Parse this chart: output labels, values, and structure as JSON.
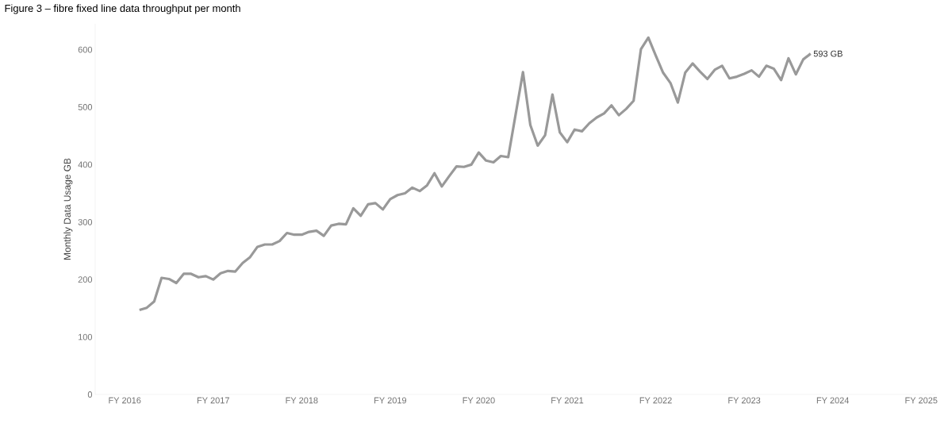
{
  "chart_data": {
    "type": "line",
    "title": "Figure 3 – fibre fixed line data throughput per month",
    "ylabel": "Monthly Data Usage GB",
    "x": [
      "2016-03",
      "2016-04",
      "2016-05",
      "2016-06",
      "2016-07",
      "2016-08",
      "2016-09",
      "2016-10",
      "2016-11",
      "2016-12",
      "2017-01",
      "2017-02",
      "2017-03",
      "2017-04",
      "2017-05",
      "2017-06",
      "2017-07",
      "2017-08",
      "2017-09",
      "2017-10",
      "2017-11",
      "2017-12",
      "2018-01",
      "2018-02",
      "2018-03",
      "2018-04",
      "2018-05",
      "2018-06",
      "2018-07",
      "2018-08",
      "2018-09",
      "2018-10",
      "2018-11",
      "2018-12",
      "2019-01",
      "2019-02",
      "2019-03",
      "2019-04",
      "2019-05",
      "2019-06",
      "2019-07",
      "2019-08",
      "2019-09",
      "2019-10",
      "2019-11",
      "2019-12",
      "2020-01",
      "2020-02",
      "2020-03",
      "2020-04",
      "2020-05",
      "2020-06",
      "2020-07",
      "2020-08",
      "2020-09",
      "2020-10",
      "2020-11",
      "2020-12",
      "2021-01",
      "2021-02",
      "2021-03",
      "2021-04",
      "2021-05",
      "2021-06",
      "2021-07",
      "2021-08",
      "2021-09",
      "2021-10",
      "2021-11",
      "2021-12",
      "2022-01",
      "2022-02",
      "2022-03",
      "2022-04",
      "2022-05",
      "2022-06",
      "2022-07",
      "2022-08",
      "2022-09",
      "2022-10",
      "2022-11",
      "2022-12",
      "2023-01",
      "2023-02",
      "2023-03",
      "2023-04",
      "2023-05",
      "2023-06",
      "2023-07",
      "2023-08",
      "2023-09",
      "2023-10"
    ],
    "series": [
      {
        "color": "#999999",
        "values": [
          147,
          151,
          162,
          203,
          201,
          194,
          210,
          210,
          204,
          206,
          200,
          211,
          215,
          214,
          229,
          239,
          257,
          261,
          261,
          267,
          281,
          278,
          278,
          283,
          285,
          276,
          294,
          297,
          296,
          324,
          311,
          331,
          333,
          322,
          340,
          347,
          350,
          360,
          354,
          364,
          385,
          362,
          380,
          397,
          396,
          400,
          421,
          407,
          404,
          415,
          413,
          487,
          561,
          469,
          433,
          451,
          522,
          456,
          439,
          461,
          458,
          472,
          482,
          489,
          503,
          486,
          497,
          511,
          601,
          621,
          590,
          560,
          542,
          508,
          560,
          576,
          562,
          549,
          565,
          572,
          550,
          553,
          558,
          564,
          553,
          572,
          567,
          547,
          585,
          557,
          583,
          593
        ]
      }
    ],
    "xlim": [
      "2015-09",
      "2025-03"
    ],
    "ylim": [
      0,
      645
    ],
    "xticks": [
      {
        "value": "2016",
        "label": "FY 2016"
      },
      {
        "value": "2017",
        "label": "FY 2017"
      },
      {
        "value": "2018",
        "label": "FY 2018"
      },
      {
        "value": "2019",
        "label": "FY 2019"
      },
      {
        "value": "2020",
        "label": "FY 2020"
      },
      {
        "value": "2021",
        "label": "FY 2021"
      },
      {
        "value": "2022",
        "label": "FY 2022"
      },
      {
        "value": "2023",
        "label": "FY 2023"
      },
      {
        "value": "2024",
        "label": "FY 2024"
      },
      {
        "value": "2025",
        "label": "FY 2025"
      }
    ],
    "yticks": [
      0,
      100,
      200,
      300,
      400,
      500,
      600
    ],
    "annotations": [
      {
        "text": "593 GB",
        "x": "2023-10",
        "y": 593
      }
    ],
    "line_style": "solid",
    "marker": "none",
    "grid": false
  }
}
